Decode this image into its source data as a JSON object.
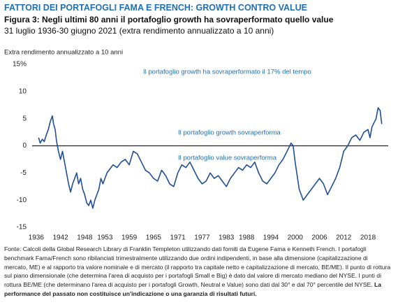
{
  "chart_data": {
    "type": "line",
    "title": "FATTORI DEI PORTAFOGLI FAMA E FRENCH: GROWTH CONTRO VALUE",
    "subtitle": "Figura 3: Negli ultimi 80 anni il portafoglio growth ha sovraperformato quello value",
    "date_range": "31 luglio 1936-30 giugno 2021 (extra rendimento annualizzato a 10 anni)",
    "y_label": "Extra rendimento annualizzato a 10 anni",
    "annotations": [
      "Il portafoglio growth ha sovraperformato il 17% del tempo",
      "Il portafoglio growth sovraperforma",
      "Il portafoglio value sovraperforma"
    ],
    "footnote": "Fonte: Calcoli della Global Research Library di Franklin Templeton utilizzando dati forniti da Eugene Fama e Kenneth French. I portafogli benchmark Fama/French sono ribilanciati trimestralmente utilizzando due ordini indipendenti, in base alla dimensione (capitalizzazione di mercato, ME) e al rapporto tra valore nominale e di mercato (il rapporto tra capitale netto e capitalizzazione di mercato, BE/ME). Il punto di rottura sul piano dimensionale (che determina l'area di acquisto per i portafogli Small e Big) è dato dal valore di mercato mediano del NYSE. I punti di rottura BE/ME (che determinano l'area di acquisto per i portafogli Growth, Neutral e Value) sono dati dal 30° e dal 70° percentile del NYSE.",
    "disclaimer": "La performance del passato non costituisce un'indicazione o una garanzia di risultati futuri.",
    "x": [
      1936.6,
      1937,
      1937.5,
      1938,
      1938.5,
      1939,
      1939.5,
      1940,
      1940.3,
      1940.7,
      1941,
      1941.5,
      1942,
      1942.5,
      1943,
      1943.5,
      1944,
      1944.5,
      1945,
      1945.5,
      1946,
      1946.5,
      1947,
      1947.5,
      1948,
      1948.5,
      1949,
      1949.5,
      1950,
      1950.5,
      1951,
      1951.5,
      1952,
      1952.5,
      1953,
      1953.5,
      1954,
      1955,
      1956,
      1957,
      1958,
      1959,
      1960,
      1961,
      1962,
      1963,
      1964,
      1965,
      1966,
      1967,
      1968,
      1969,
      1970,
      1971,
      1972,
      1973,
      1974,
      1975,
      1976,
      1977,
      1978,
      1979,
      1980,
      1981,
      1982,
      1983,
      1984,
      1985,
      1986,
      1987,
      1988,
      1989,
      1990,
      1991,
      1992,
      1993,
      1994,
      1995,
      1996,
      1997,
      1998,
      1999,
      1999.5,
      2000,
      2001,
      2002,
      2003,
      2004,
      2005,
      2006,
      2007,
      2008,
      2009,
      2010,
      2011,
      2012,
      2013,
      2014,
      2015,
      2016,
      2017,
      2018,
      2018.5,
      2019,
      2020,
      2020.5,
      2021,
      2021.4
    ],
    "series": [
      {
        "color": "#1f4e96",
        "values": [
          1.5,
          0.5,
          1.2,
          0.8,
          2,
          3,
          4.5,
          5.5,
          4,
          3,
          1,
          -1,
          -2.5,
          -1,
          -3,
          -5,
          -7,
          -8.5,
          -7,
          -6,
          -5,
          -7,
          -6,
          -8,
          -9,
          -10.5,
          -11,
          -10,
          -11.5,
          -10,
          -9,
          -8,
          -6,
          -7,
          -6,
          -5,
          -4.5,
          -3.5,
          -4,
          -3,
          -2.5,
          -3.5,
          -1,
          -1.5,
          -3,
          -4.5,
          -5,
          -6,
          -6.5,
          -4.5,
          -5.5,
          -7,
          -7.5,
          -5,
          -3.5,
          -4,
          -3,
          -4.5,
          -6,
          -7,
          -6.5,
          -5,
          -6,
          -5.5,
          -6.5,
          -7.5,
          -6,
          -5,
          -4,
          -4.5,
          -3.5,
          -4,
          -3,
          -5,
          -6.5,
          -7,
          -6,
          -5,
          -3.5,
          -2.5,
          -1,
          0.5,
          0,
          -3,
          -8,
          -10,
          -9,
          -8,
          -7,
          -6,
          -7,
          -9,
          -7.5,
          -6,
          -4,
          -1,
          0,
          1.5,
          2,
          1,
          2.5,
          3,
          1.5,
          3.5,
          5,
          7,
          6.5,
          4
        ]
      }
    ],
    "xlim": [
      1935,
      2023
    ],
    "xticks": [
      1936,
      1942,
      1948,
      1953,
      1959,
      1965,
      1971,
      1977,
      1983,
      1988,
      1994,
      2000,
      2006,
      2012,
      2018
    ],
    "ylim": [
      -15,
      15
    ],
    "yticks": [
      {
        "value": 15,
        "label": "15%"
      },
      10,
      5,
      0,
      -5,
      -10,
      -15
    ],
    "zero_line": true
  }
}
